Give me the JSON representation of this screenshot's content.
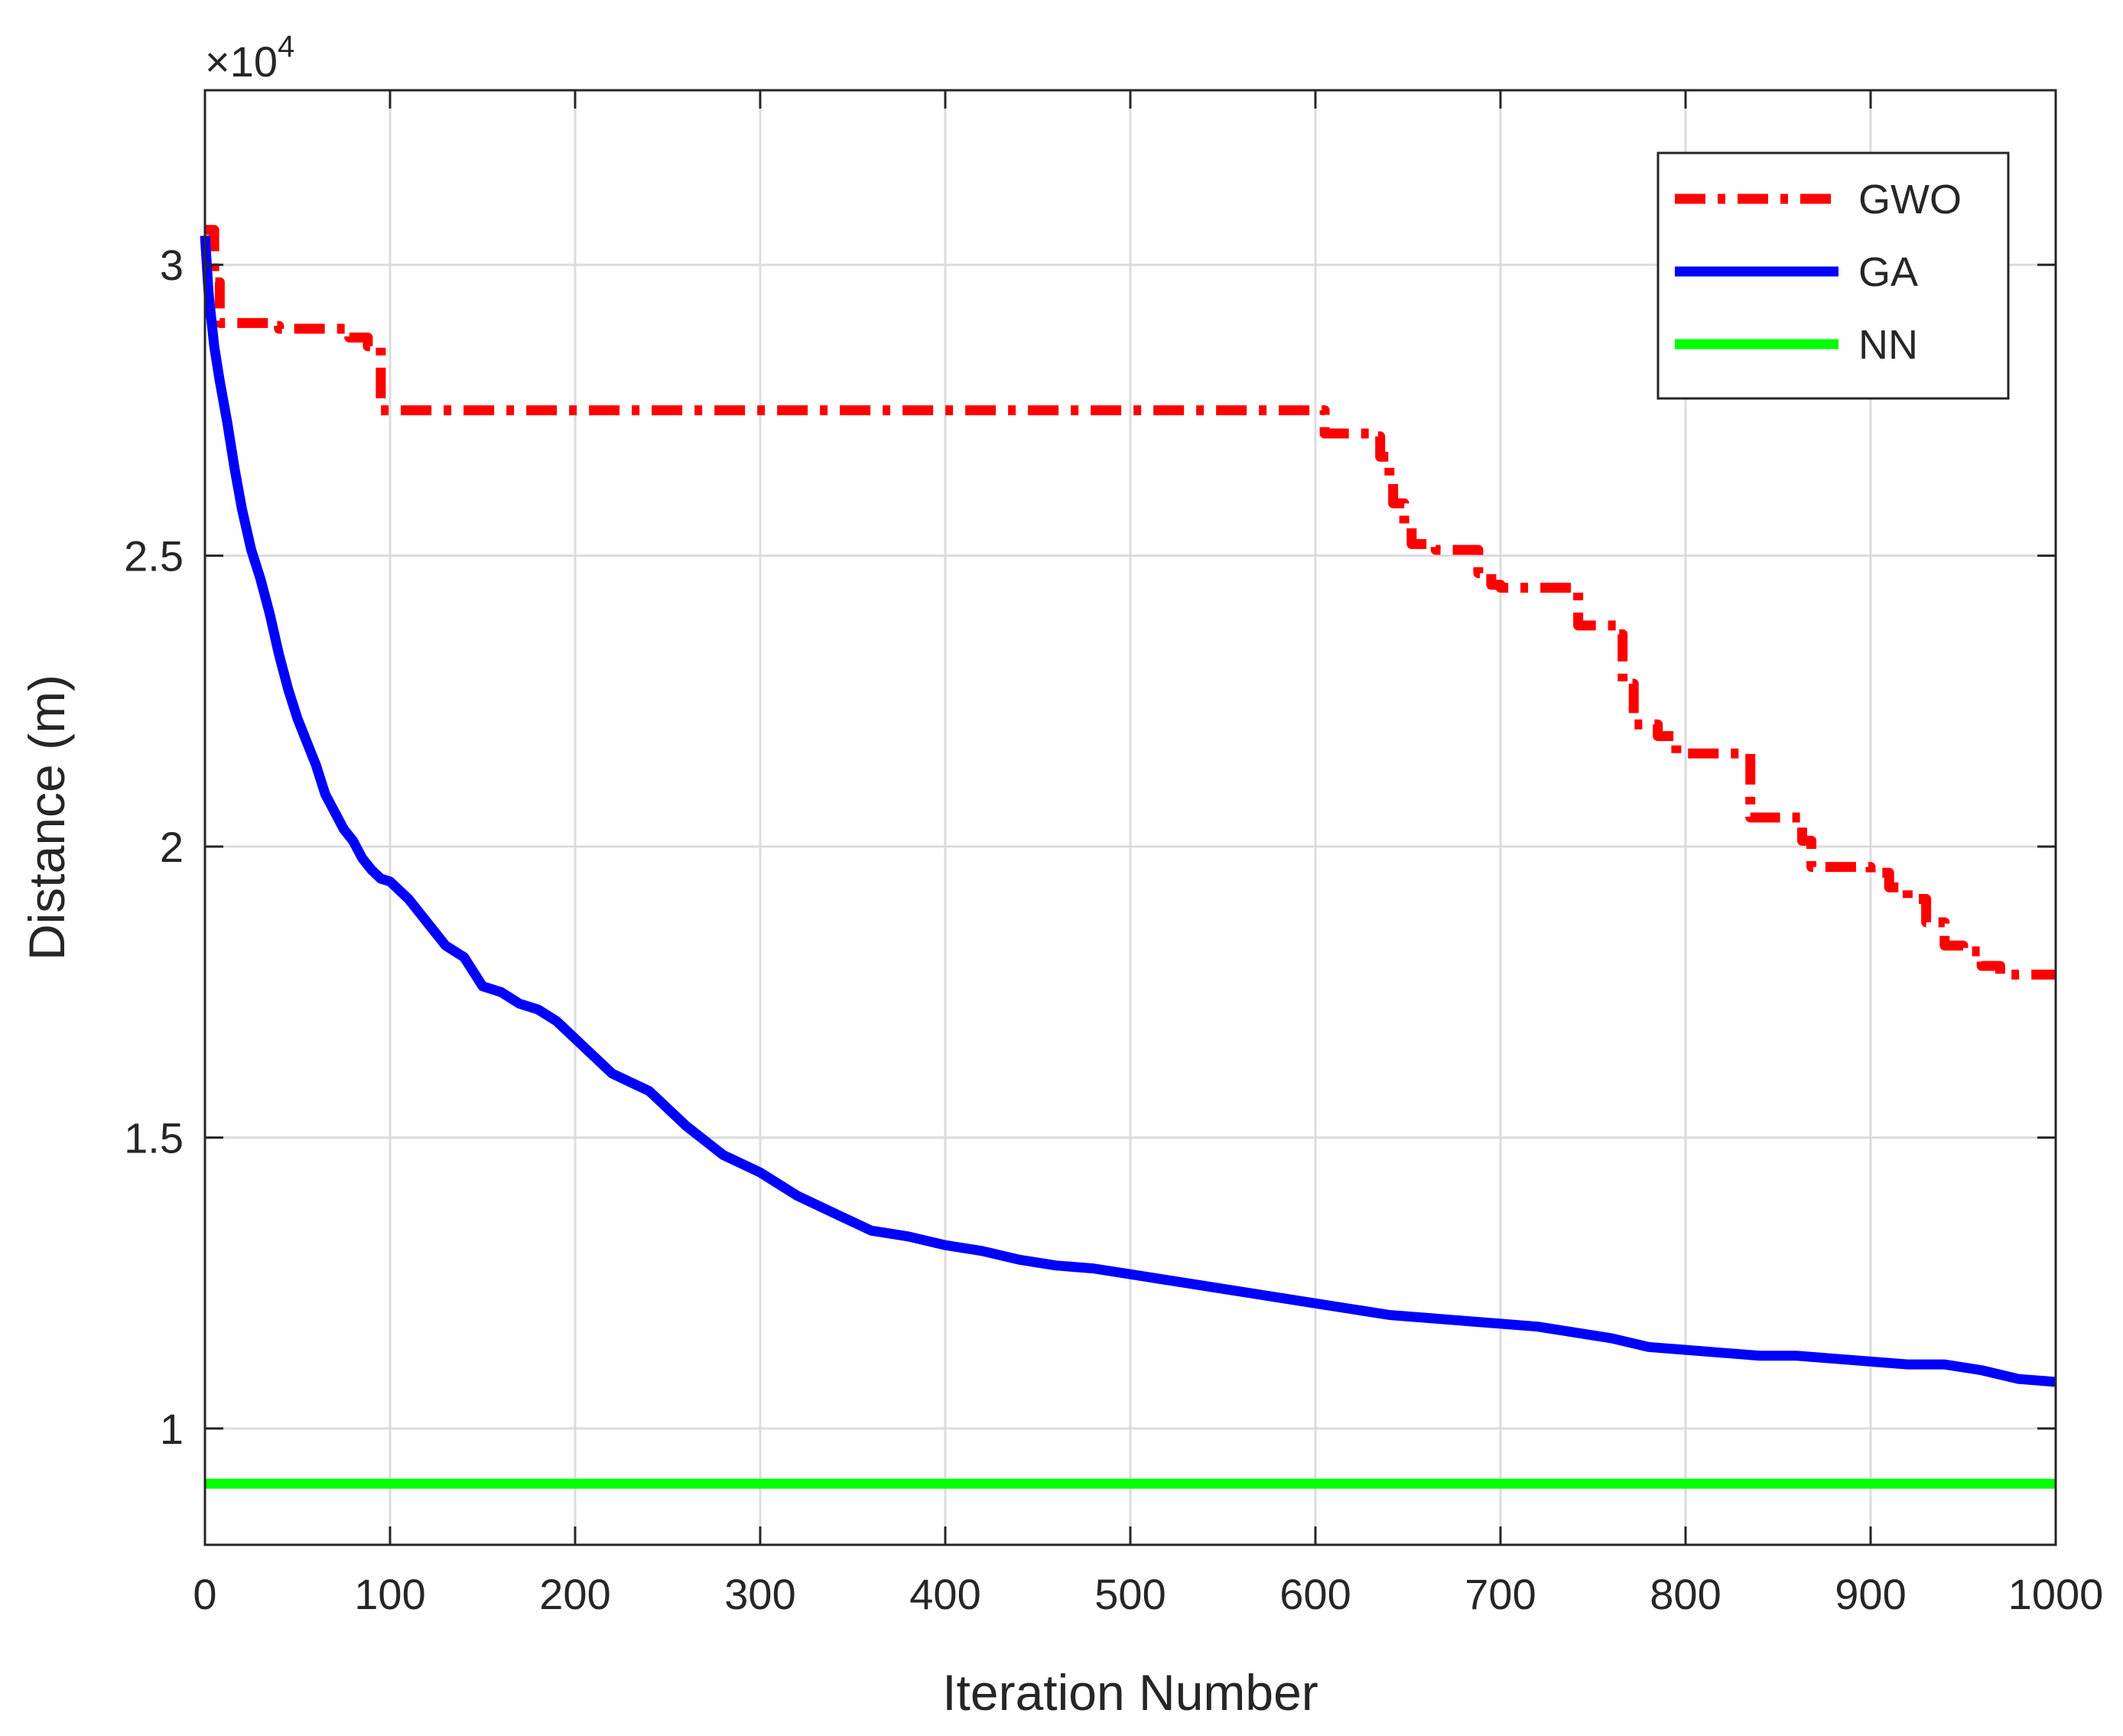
{
  "chart_data": {
    "type": "line",
    "title": "",
    "xlabel": "Iteration Number",
    "ylabel": "Distance (m)",
    "xlim": [
      0,
      1000
    ],
    "ylim": [
      8000,
      33000
    ],
    "y_multiplier": "×10",
    "y_multiplier_exp": "4",
    "xticks": [
      0,
      100,
      200,
      300,
      400,
      500,
      600,
      700,
      800,
      900,
      1000
    ],
    "xtick_labels": [
      "0",
      "100",
      "200",
      "300",
      "400",
      "500",
      "600",
      "700",
      "800",
      "900",
      "1000"
    ],
    "yticks": [
      10000,
      15000,
      20000,
      25000,
      30000
    ],
    "ytick_labels": [
      "1",
      "1.5",
      "2",
      "2.5",
      "3"
    ],
    "grid": true,
    "legend_position": "top-right",
    "series": [
      {
        "name": "GWO",
        "color": "#ff0000",
        "style": "dashdot",
        "step": true,
        "x": [
          0,
          5,
          8,
          35,
          40,
          70,
          78,
          88,
          95,
          600,
          605,
          630,
          635,
          640,
          642,
          648,
          652,
          665,
          680,
          688,
          695,
          700,
          735,
          742,
          760,
          763,
          766,
          772,
          785,
          795,
          830,
          835,
          860,
          863,
          868,
          880,
          900,
          910,
          920,
          930,
          940,
          950,
          960,
          970,
          1000
        ],
        "y": [
          30600,
          29700,
          29000,
          28950,
          28900,
          28900,
          28750,
          28600,
          27500,
          27500,
          27100,
          27050,
          26700,
          26300,
          25900,
          25500,
          25200,
          25100,
          25100,
          24700,
          24500,
          24450,
          24450,
          23800,
          23800,
          23650,
          22800,
          22100,
          21900,
          21600,
          21600,
          20500,
          20500,
          20100,
          19650,
          19650,
          19550,
          19300,
          19100,
          18700,
          18300,
          18200,
          17950,
          17800,
          17800
        ]
      },
      {
        "name": "GA",
        "color": "#0000ff",
        "style": "solid",
        "step": false,
        "x": [
          0,
          2,
          5,
          8,
          12,
          16,
          20,
          25,
          30,
          35,
          40,
          45,
          50,
          55,
          60,
          65,
          70,
          75,
          80,
          85,
          90,
          95,
          100,
          110,
          120,
          130,
          140,
          150,
          160,
          170,
          180,
          190,
          200,
          220,
          240,
          260,
          280,
          300,
          320,
          340,
          360,
          380,
          400,
          420,
          440,
          460,
          480,
          500,
          520,
          540,
          560,
          580,
          600,
          620,
          640,
          660,
          680,
          700,
          720,
          740,
          760,
          780,
          800,
          820,
          840,
          860,
          880,
          900,
          920,
          940,
          960,
          980,
          1000
        ],
        "y": [
          30500,
          29500,
          28600,
          28000,
          27300,
          26500,
          25800,
          25100,
          24600,
          24000,
          23300,
          22700,
          22200,
          21800,
          21400,
          20900,
          20600,
          20300,
          20100,
          19800,
          19600,
          19450,
          19400,
          19100,
          18700,
          18300,
          18100,
          17600,
          17500,
          17300,
          17200,
          17000,
          16700,
          16100,
          15800,
          15200,
          14700,
          14400,
          14000,
          13700,
          13400,
          13300,
          13150,
          13050,
          12900,
          12800,
          12750,
          12650,
          12550,
          12450,
          12350,
          12250,
          12150,
          12050,
          11950,
          11900,
          11850,
          11800,
          11750,
          11650,
          11550,
          11400,
          11350,
          11300,
          11250,
          11250,
          11200,
          11150,
          11100,
          11100,
          11000,
          10850,
          10800
        ]
      },
      {
        "name": "NN",
        "color": "#00ff00",
        "style": "solid",
        "step": false,
        "x": [
          0,
          1000
        ],
        "y": [
          9050,
          9050
        ]
      }
    ]
  }
}
